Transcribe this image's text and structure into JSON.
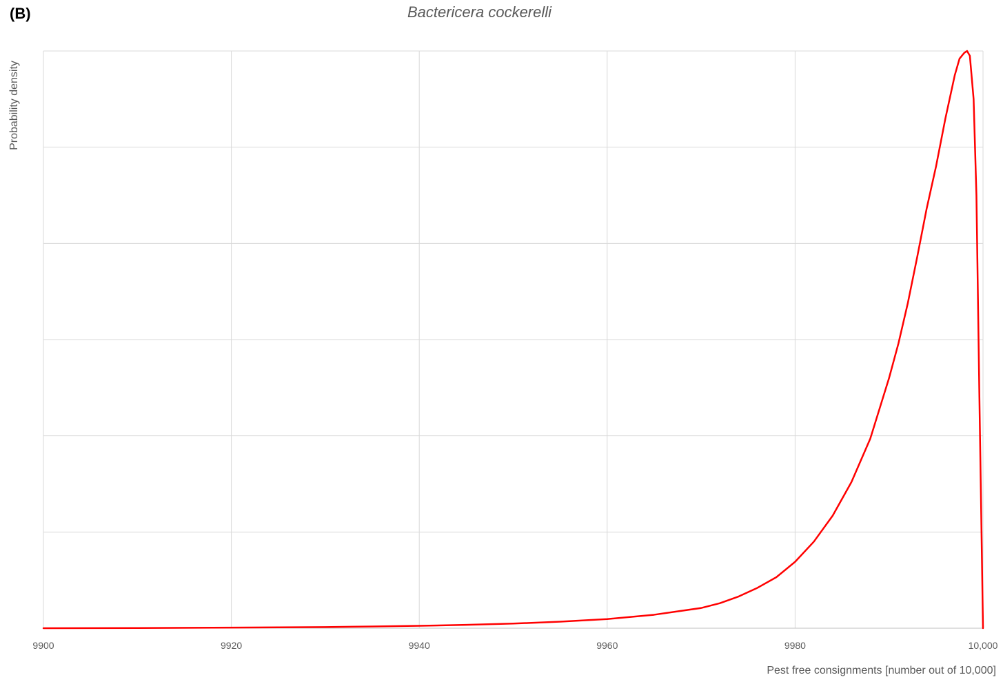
{
  "panel_label": "(B)",
  "chart_data": {
    "type": "line",
    "title": "Bactericera cockerelli",
    "xlabel": "Pest free consignments [number out of 10,000]",
    "ylabel": "Probability density",
    "xlim": [
      9900,
      10000
    ],
    "ylim": [
      0,
      6
    ],
    "x_ticks": [
      9900,
      9920,
      9940,
      9960,
      9980,
      10000
    ],
    "x_tick_labels": [
      "9900",
      "9920",
      "9940",
      "9960",
      "9980",
      "10,000"
    ],
    "y_gridlines": [
      1,
      2,
      3,
      4,
      5,
      6
    ],
    "y_tick_labels": "none",
    "grid": true,
    "series": [
      {
        "color": "#ff0000",
        "x": [
          9900,
          9910,
          9920,
          9930,
          9935,
          9940,
          9945,
          9950,
          9955,
          9960,
          9965,
          9970,
          9972,
          9974,
          9976,
          9978,
          9980,
          9982,
          9984,
          9986,
          9988,
          9990,
          9991,
          9992,
          9993,
          9994,
          9995,
          9996,
          9997,
          9997.5,
          9998,
          9998.3,
          9998.6,
          9999,
          9999.3,
          9999.6,
          10000
        ],
        "y": [
          0,
          0.002,
          0.006,
          0.012,
          0.018,
          0.025,
          0.035,
          0.048,
          0.068,
          0.095,
          0.14,
          0.21,
          0.26,
          0.33,
          0.42,
          0.53,
          0.69,
          0.9,
          1.17,
          1.52,
          1.97,
          2.6,
          2.96,
          3.38,
          3.86,
          4.36,
          4.8,
          5.3,
          5.75,
          5.92,
          5.98,
          6.0,
          5.95,
          5.5,
          4.5,
          2.5,
          0
        ]
      }
    ]
  }
}
